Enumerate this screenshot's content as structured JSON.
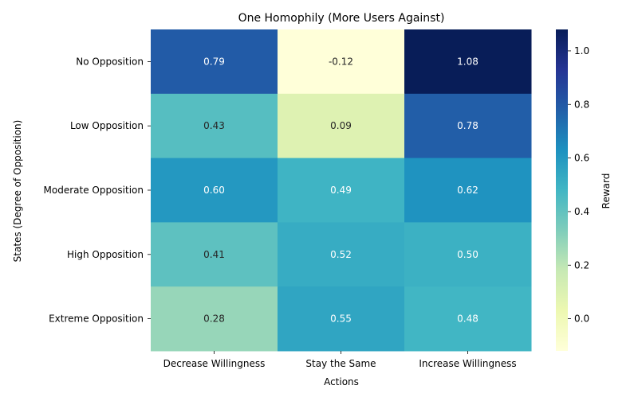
{
  "chart_data": {
    "type": "heatmap",
    "title": "One Homophily (More Users Against)",
    "xlabel": "Actions",
    "ylabel": "States (Degree of Opposition)",
    "x_categories": [
      "Decrease Willingness",
      "Stay the Same",
      "Increase Willingness"
    ],
    "y_categories": [
      "No Opposition",
      "Low Opposition",
      "Moderate Opposition",
      "High Opposition",
      "Extreme Opposition"
    ],
    "values": [
      [
        0.79,
        -0.12,
        1.08
      ],
      [
        0.43,
        0.09,
        0.78
      ],
      [
        0.6,
        0.49,
        0.62
      ],
      [
        0.41,
        0.52,
        0.5
      ],
      [
        0.28,
        0.55,
        0.48
      ]
    ],
    "cell_labels": [
      [
        "0.79",
        "-0.12",
        "1.08"
      ],
      [
        "0.43",
        "0.09",
        "0.78"
      ],
      [
        "0.60",
        "0.49",
        "0.62"
      ],
      [
        "0.41",
        "0.52",
        "0.50"
      ],
      [
        "0.28",
        "0.55",
        "0.48"
      ]
    ],
    "colormap": "YlGnBu",
    "colorbar": {
      "label": "Reward",
      "range": [
        -0.12,
        1.08
      ],
      "ticks": [
        0.0,
        0.2,
        0.4,
        0.6,
        0.8,
        1.0
      ],
      "tick_labels": [
        "0.0",
        "0.2",
        "0.4",
        "0.6",
        "0.8",
        "1.0"
      ]
    },
    "grid": false
  }
}
